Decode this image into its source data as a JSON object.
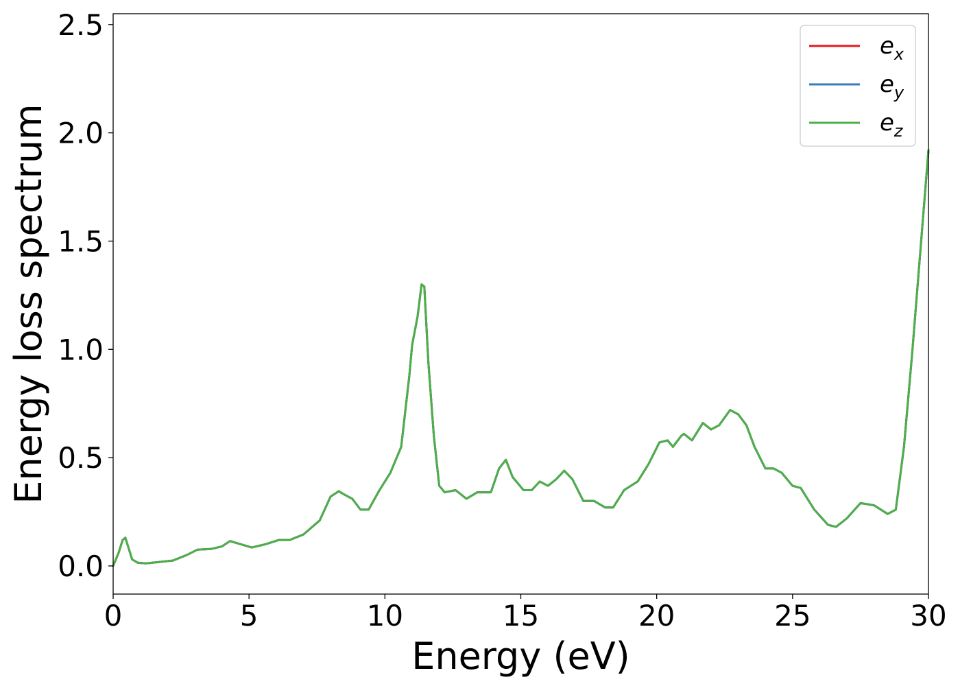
{
  "chart_data": {
    "type": "line",
    "title": "",
    "xlabel": "Energy (eV)",
    "ylabel": "Energy loss spectrum",
    "xlim": [
      0,
      30
    ],
    "ylim": [
      -0.13,
      2.55
    ],
    "xticks": [
      0,
      5,
      10,
      15,
      20,
      25,
      30
    ],
    "xtick_labels": [
      "0",
      "5",
      "10",
      "15",
      "20",
      "25",
      "30"
    ],
    "yticks": [
      0.0,
      0.5,
      1.0,
      1.5,
      2.0,
      2.5
    ],
    "ytick_labels": [
      "0.0",
      "0.5",
      "1.0",
      "1.5",
      "2.0",
      "2.5"
    ],
    "grid": false,
    "legend_position": "top-right",
    "x": [
      0,
      0.2,
      0.35,
      0.45,
      0.55,
      0.7,
      0.9,
      1.2,
      1.6,
      2.2,
      2.7,
      3.1,
      3.6,
      4.0,
      4.3,
      4.7,
      5.1,
      5.6,
      6.1,
      6.5,
      7.0,
      7.6,
      8.0,
      8.3,
      8.5,
      8.8,
      9.1,
      9.4,
      9.8,
      10.2,
      10.6,
      10.9,
      11.0,
      11.2,
      11.35,
      11.45,
      11.6,
      11.8,
      12.0,
      12.2,
      12.6,
      13.0,
      13.4,
      13.9,
      14.2,
      14.45,
      14.7,
      15.1,
      15.4,
      15.7,
      16.0,
      16.3,
      16.6,
      16.9,
      17.3,
      17.7,
      18.1,
      18.4,
      18.8,
      19.3,
      19.7,
      20.1,
      20.4,
      20.6,
      20.9,
      21.0,
      21.3,
      21.7,
      22.0,
      22.3,
      22.7,
      23.0,
      23.3,
      23.6,
      24.0,
      24.3,
      24.6,
      25.0,
      25.3,
      25.8,
      26.3,
      26.6,
      27.0,
      27.5,
      28.0,
      28.5,
      28.8,
      29.1,
      29.4,
      29.7,
      30.0
    ],
    "series": [
      {
        "name": "e_x",
        "color": "#e41a1c",
        "values": [
          0.0,
          0.06,
          0.12,
          0.13,
          0.09,
          0.03,
          0.015,
          0.012,
          0.017,
          0.025,
          0.05,
          0.075,
          0.078,
          0.09,
          0.115,
          0.1,
          0.085,
          0.1,
          0.12,
          0.12,
          0.145,
          0.21,
          0.32,
          0.345,
          0.33,
          0.31,
          0.26,
          0.26,
          0.35,
          0.43,
          0.55,
          0.88,
          1.02,
          1.15,
          1.3,
          1.29,
          0.94,
          0.6,
          0.37,
          0.34,
          0.35,
          0.31,
          0.34,
          0.34,
          0.45,
          0.49,
          0.41,
          0.35,
          0.35,
          0.39,
          0.37,
          0.4,
          0.44,
          0.4,
          0.3,
          0.3,
          0.27,
          0.27,
          0.35,
          0.39,
          0.47,
          0.57,
          0.58,
          0.55,
          0.6,
          0.61,
          0.58,
          0.66,
          0.63,
          0.65,
          0.72,
          0.7,
          0.65,
          0.55,
          0.45,
          0.45,
          0.43,
          0.37,
          0.36,
          0.26,
          0.19,
          0.18,
          0.22,
          0.29,
          0.28,
          0.24,
          0.26,
          0.55,
          0.98,
          1.45,
          1.92
        ]
      },
      {
        "name": "e_y",
        "color": "#377eb8",
        "values": [
          0.0,
          0.06,
          0.12,
          0.13,
          0.09,
          0.03,
          0.015,
          0.012,
          0.017,
          0.025,
          0.05,
          0.075,
          0.078,
          0.09,
          0.115,
          0.1,
          0.085,
          0.1,
          0.12,
          0.12,
          0.145,
          0.21,
          0.32,
          0.345,
          0.33,
          0.31,
          0.26,
          0.26,
          0.35,
          0.43,
          0.55,
          0.88,
          1.02,
          1.15,
          1.3,
          1.29,
          0.94,
          0.6,
          0.37,
          0.34,
          0.35,
          0.31,
          0.34,
          0.34,
          0.45,
          0.49,
          0.41,
          0.35,
          0.35,
          0.39,
          0.37,
          0.4,
          0.44,
          0.4,
          0.3,
          0.3,
          0.27,
          0.27,
          0.35,
          0.39,
          0.47,
          0.57,
          0.58,
          0.55,
          0.6,
          0.61,
          0.58,
          0.66,
          0.63,
          0.65,
          0.72,
          0.7,
          0.65,
          0.55,
          0.45,
          0.45,
          0.43,
          0.37,
          0.36,
          0.26,
          0.19,
          0.18,
          0.22,
          0.29,
          0.28,
          0.24,
          0.26,
          0.55,
          0.98,
          1.45,
          1.92
        ]
      },
      {
        "name": "e_z",
        "color": "#4daf4a",
        "values": [
          0.0,
          0.06,
          0.12,
          0.13,
          0.09,
          0.03,
          0.015,
          0.012,
          0.017,
          0.025,
          0.05,
          0.075,
          0.078,
          0.09,
          0.115,
          0.1,
          0.085,
          0.1,
          0.12,
          0.12,
          0.145,
          0.21,
          0.32,
          0.345,
          0.33,
          0.31,
          0.26,
          0.26,
          0.35,
          0.43,
          0.55,
          0.88,
          1.02,
          1.15,
          1.3,
          1.29,
          0.94,
          0.6,
          0.37,
          0.34,
          0.35,
          0.31,
          0.34,
          0.34,
          0.45,
          0.49,
          0.41,
          0.35,
          0.35,
          0.39,
          0.37,
          0.4,
          0.44,
          0.4,
          0.3,
          0.3,
          0.27,
          0.27,
          0.35,
          0.39,
          0.47,
          0.57,
          0.58,
          0.55,
          0.6,
          0.61,
          0.58,
          0.66,
          0.63,
          0.65,
          0.72,
          0.7,
          0.65,
          0.55,
          0.45,
          0.45,
          0.43,
          0.37,
          0.36,
          0.26,
          0.19,
          0.18,
          0.22,
          0.29,
          0.28,
          0.24,
          0.26,
          0.55,
          0.98,
          1.45,
          1.92
        ]
      }
    ],
    "legend": [
      {
        "base": "e",
        "sub": "x",
        "color": "#e41a1c"
      },
      {
        "base": "e",
        "sub": "y",
        "color": "#377eb8"
      },
      {
        "base": "e",
        "sub": "z",
        "color": "#4daf4a"
      }
    ]
  }
}
